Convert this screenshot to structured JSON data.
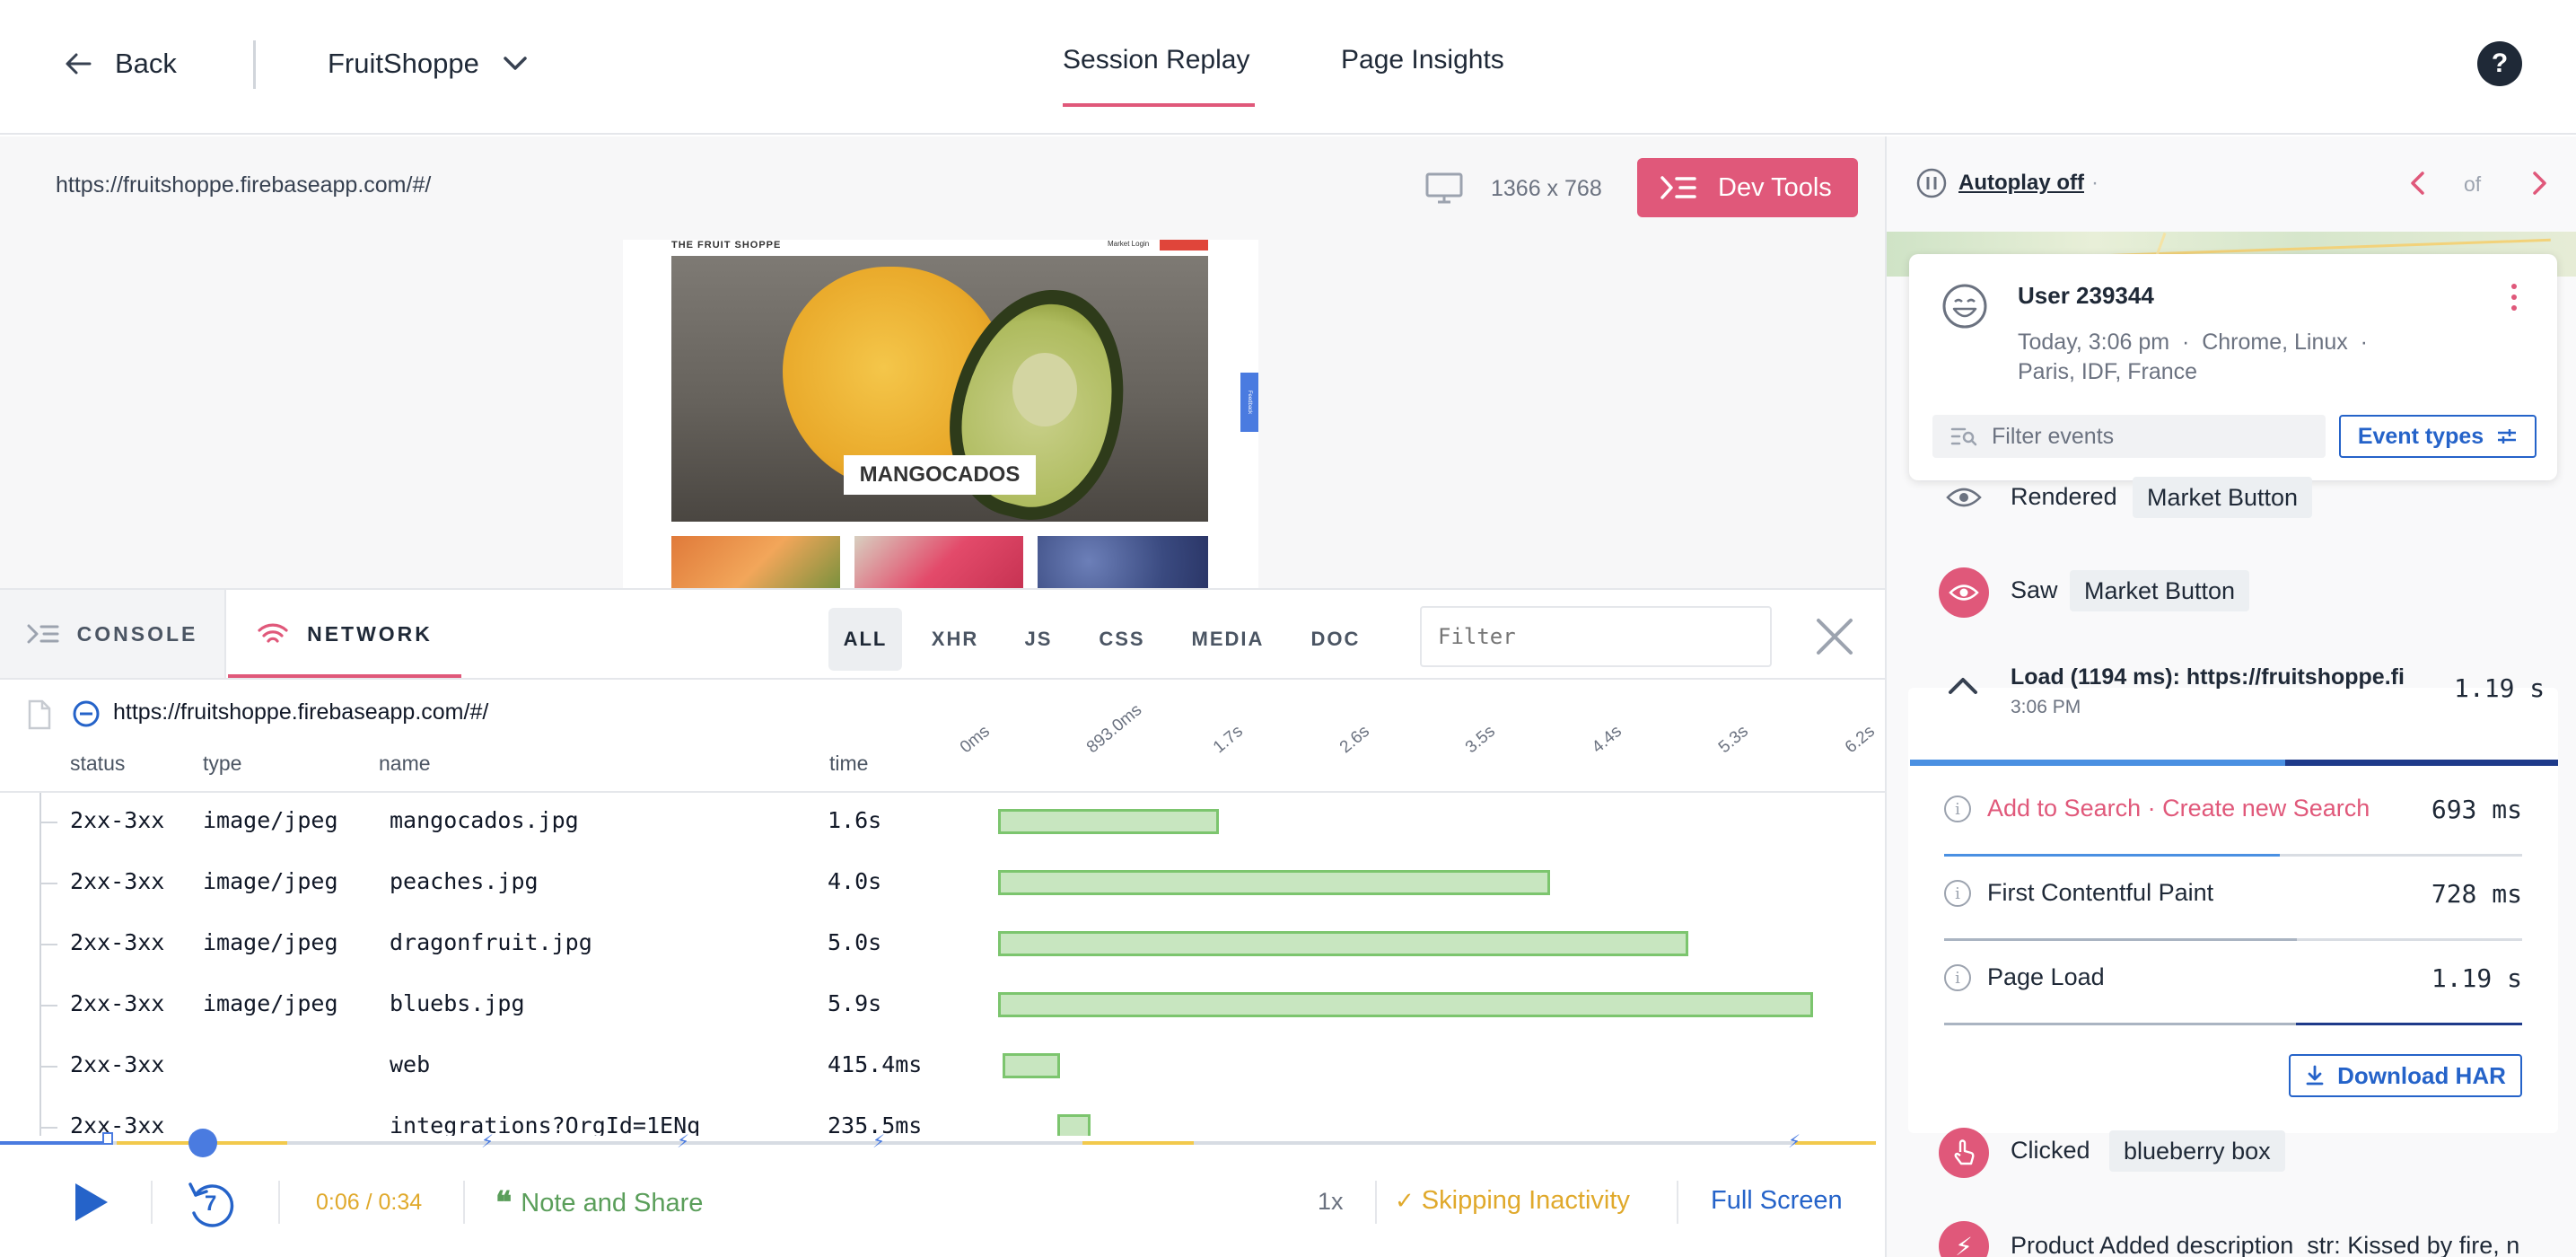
{
  "header": {
    "back_label": "Back",
    "project_name": "FruitShoppe",
    "tabs": [
      {
        "label": "Session Replay",
        "active": true
      },
      {
        "label": "Page Insights",
        "active": false
      }
    ],
    "help_label": "?"
  },
  "replay": {
    "url": "https://fruitshoppe.firebaseapp.com/#/",
    "resolution": "1366 x 768",
    "devtools_label": "Dev Tools",
    "site": {
      "brand": "THE FRUIT SHOPPE",
      "top_links": "Market  Login",
      "hero_label": "MANGOCADOS",
      "side_tab": "Feedback"
    }
  },
  "devtools": {
    "tabs": [
      {
        "label": "CONSOLE",
        "active": false
      },
      {
        "label": "NETWORK",
        "active": true
      }
    ],
    "filters": [
      "ALL",
      "XHR",
      "JS",
      "CSS",
      "MEDIA",
      "DOC"
    ],
    "active_filter": "ALL",
    "filter_placeholder": "Filter",
    "page_url": "https://fruitshoppe.firebaseapp.com/#/",
    "columns": [
      "status",
      "type",
      "name",
      "time"
    ],
    "timeline_ticks": [
      "0ms",
      "893.0ms",
      "1.7s",
      "2.6s",
      "3.5s",
      "4.4s",
      "5.3s",
      "6.2s"
    ],
    "rows": [
      {
        "status": "2xx-3xx",
        "type": "image/jpeg",
        "name": "mangocados.jpg",
        "time": "1.6s",
        "start_s": 0.0,
        "end_s": 1.6
      },
      {
        "status": "2xx-3xx",
        "type": "image/jpeg",
        "name": "peaches.jpg",
        "time": "4.0s",
        "start_s": 0.0,
        "end_s": 4.0
      },
      {
        "status": "2xx-3xx",
        "type": "image/jpeg",
        "name": "dragonfruit.jpg",
        "time": "5.0s",
        "start_s": 0.0,
        "end_s": 5.0
      },
      {
        "status": "2xx-3xx",
        "type": "image/jpeg",
        "name": "bluebs.jpg",
        "time": "5.9s",
        "start_s": 0.0,
        "end_s": 5.9
      },
      {
        "status": "2xx-3xx",
        "type": "",
        "name": "web",
        "time": "415.4ms",
        "start_s": 0.03,
        "end_s": 0.45
      },
      {
        "status": "2xx-3xx",
        "type": "",
        "name": "integrations?OrgId=1ENq",
        "time": "235.5ms",
        "start_s": 0.43,
        "end_s": 0.67
      }
    ]
  },
  "player": {
    "time": "0:06 / 0:34",
    "skip_seconds": "7",
    "note_label": "Note and Share",
    "speed": "1x",
    "skip_label": "Skipping Inactivity",
    "fullscreen_label": "Full Screen",
    "progress_fraction": 0.176
  },
  "sidebar": {
    "autoplay_label": "Autoplay off",
    "autoplay_suffix": "·",
    "pager_of": "of",
    "user": {
      "name": "User 239344",
      "meta_line1": "Today, 3:06 pm  ·  Chrome, Linux  ·",
      "meta_line2": "Paris, IDF, France"
    },
    "filter_placeholder": "Filter events",
    "event_types_label": "Event types",
    "events": [
      {
        "action": "Rendered",
        "target": "Market Button"
      },
      {
        "action": "Saw",
        "target": "Market Button"
      }
    ],
    "load": {
      "title": "Load (1194 ms): https://fruitshoppe.fi",
      "time": "3:06 PM",
      "duration": "1.19 s",
      "add_search": "Add to Search",
      "separator": "·",
      "create_search": "Create new Search",
      "metrics": [
        {
          "label": "",
          "value": "693 ms",
          "fraction": 0.58
        },
        {
          "label": "First Contentful Paint",
          "value": "728 ms",
          "fraction": 0.61
        },
        {
          "label": "Page Load",
          "value": "1.19 s",
          "fraction": 1.0
        }
      ],
      "download_label": "Download HAR"
    },
    "events_after": [
      {
        "action": "Clicked",
        "target": "blueberry box"
      },
      {
        "action": "Product Added",
        "target": "description  str: Kissed by fire, n"
      }
    ]
  },
  "colors": {
    "accent_pink": "#e0587a",
    "link_blue": "#2563c9",
    "bar_green": "#c8e6c0",
    "timeline_yellow": "#f2c94c"
  }
}
